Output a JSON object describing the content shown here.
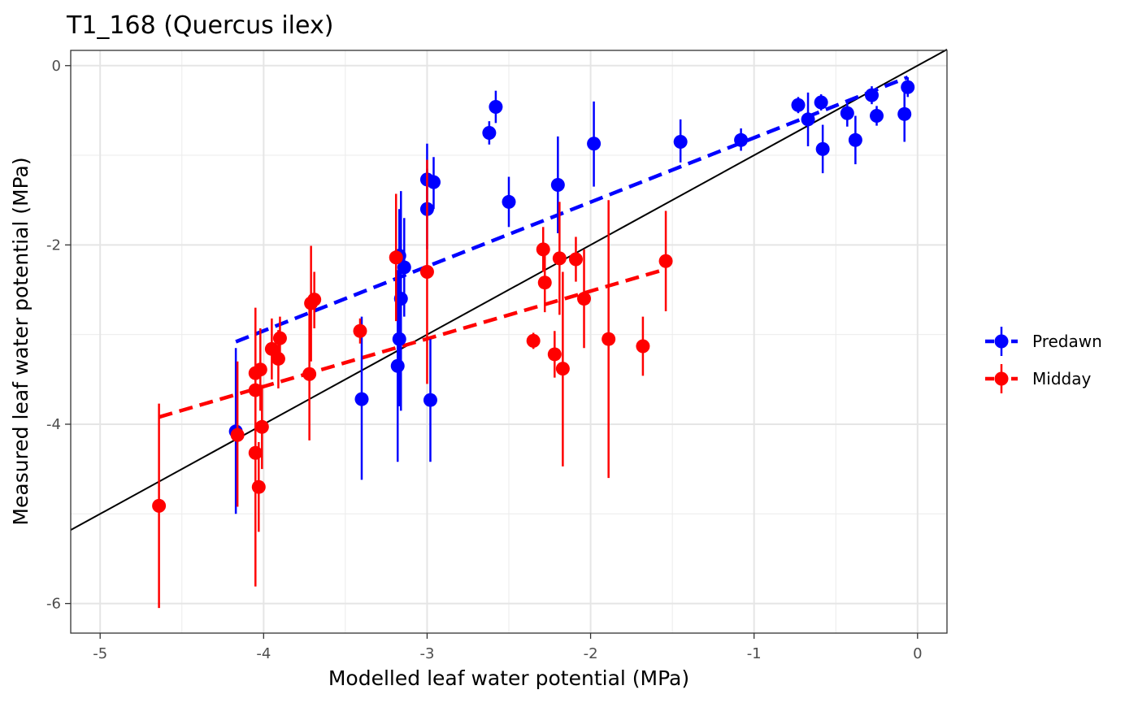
{
  "chart_data": {
    "type": "scatter",
    "title": "T1_168 (Quercus ilex)",
    "xlabel": "Modelled leaf water potential (MPa)",
    "ylabel": "Measured leaf water potential (MPa)",
    "xlim": [
      -5.18,
      0.18
    ],
    "ylim": [
      -6.33,
      0.17
    ],
    "x_ticks": [
      -5,
      -4,
      -3,
      -2,
      -1,
      0
    ],
    "y_ticks": [
      -6,
      -4,
      -2,
      0
    ],
    "grid": true,
    "legend_position": "right",
    "identity_line": {
      "from": [
        -5.18,
        -5.18
      ],
      "to": [
        0.18,
        0.18
      ],
      "color": "#000000"
    },
    "series": [
      {
        "name": "Predawn",
        "color": "#0000ff",
        "points": [
          {
            "x": -4.17,
            "y": -4.08,
            "lo": -5.0,
            "hi": -3.15
          },
          {
            "x": -3.4,
            "y": -3.72,
            "lo": -4.62,
            "hi": -2.8
          },
          {
            "x": -3.18,
            "y": -3.35,
            "lo": -4.42,
            "hi": -2.28
          },
          {
            "x": -3.17,
            "y": -3.05,
            "lo": -3.8,
            "hi": -2.3
          },
          {
            "x": -3.16,
            "y": -2.6,
            "lo": -3.85,
            "hi": -1.4
          },
          {
            "x": -3.14,
            "y": -2.25,
            "lo": -2.8,
            "hi": -1.7
          },
          {
            "x": -3.17,
            "y": -2.12,
            "lo": -2.65,
            "hi": -1.6
          },
          {
            "x": -3.0,
            "y": -1.6,
            "lo": -2.05,
            "hi": -1.15
          },
          {
            "x": -3.0,
            "y": -1.27,
            "lo": -1.65,
            "hi": -0.87
          },
          {
            "x": -2.96,
            "y": -1.3,
            "lo": -1.6,
            "hi": -1.02
          },
          {
            "x": -2.98,
            "y": -3.73,
            "lo": -4.42,
            "hi": -3.05
          },
          {
            "x": -2.62,
            "y": -0.75,
            "lo": -0.88,
            "hi": -0.62
          },
          {
            "x": -2.58,
            "y": -0.46,
            "lo": -0.64,
            "hi": -0.28
          },
          {
            "x": -2.5,
            "y": -1.52,
            "lo": -1.8,
            "hi": -1.24
          },
          {
            "x": -2.2,
            "y": -1.33,
            "lo": -1.87,
            "hi": -0.79
          },
          {
            "x": -1.98,
            "y": -0.87,
            "lo": -1.35,
            "hi": -0.4
          },
          {
            "x": -1.45,
            "y": -0.85,
            "lo": -1.08,
            "hi": -0.6
          },
          {
            "x": -1.08,
            "y": -0.83,
            "lo": -0.95,
            "hi": -0.7
          },
          {
            "x": -0.73,
            "y": -0.44,
            "lo": -0.53,
            "hi": -0.35
          },
          {
            "x": -0.67,
            "y": -0.6,
            "lo": -0.9,
            "hi": -0.3
          },
          {
            "x": -0.59,
            "y": -0.41,
            "lo": -0.5,
            "hi": -0.32
          },
          {
            "x": -0.58,
            "y": -0.93,
            "lo": -1.2,
            "hi": -0.66
          },
          {
            "x": -0.43,
            "y": -0.53,
            "lo": -0.68,
            "hi": -0.38
          },
          {
            "x": -0.38,
            "y": -0.83,
            "lo": -1.1,
            "hi": -0.56
          },
          {
            "x": -0.28,
            "y": -0.33,
            "lo": -0.43,
            "hi": -0.23
          },
          {
            "x": -0.25,
            "y": -0.56,
            "lo": -0.67,
            "hi": -0.45
          },
          {
            "x": -0.08,
            "y": -0.54,
            "lo": -0.85,
            "hi": -0.23
          },
          {
            "x": -0.06,
            "y": -0.24,
            "lo": -0.35,
            "hi": -0.13
          }
        ],
        "fit": {
          "x0": -4.17,
          "y0": -3.08,
          "x1": -0.06,
          "y1": -0.13
        }
      },
      {
        "name": "Midday",
        "color": "#ff0000",
        "points": [
          {
            "x": -4.64,
            "y": -4.91,
            "lo": -6.05,
            "hi": -3.77
          },
          {
            "x": -4.16,
            "y": -4.12,
            "lo": -4.92,
            "hi": -3.3
          },
          {
            "x": -4.05,
            "y": -4.32,
            "lo": -5.81,
            "hi": -2.7
          },
          {
            "x": -4.03,
            "y": -4.7,
            "lo": -5.2,
            "hi": -4.2
          },
          {
            "x": -4.01,
            "y": -4.03,
            "lo": -4.5,
            "hi": -3.56
          },
          {
            "x": -4.05,
            "y": -3.62,
            "lo": -4.1,
            "hi": -3.15
          },
          {
            "x": -4.05,
            "y": -3.43,
            "lo": -3.9,
            "hi": -2.95
          },
          {
            "x": -4.02,
            "y": -3.39,
            "lo": -3.85,
            "hi": -2.93
          },
          {
            "x": -3.95,
            "y": -3.16,
            "lo": -3.5,
            "hi": -2.82
          },
          {
            "x": -3.91,
            "y": -3.27,
            "lo": -3.6,
            "hi": -2.95
          },
          {
            "x": -3.9,
            "y": -3.04,
            "lo": -3.3,
            "hi": -2.8
          },
          {
            "x": -3.72,
            "y": -3.44,
            "lo": -4.18,
            "hi": -2.7
          },
          {
            "x": -3.71,
            "y": -2.65,
            "lo": -3.3,
            "hi": -2.01
          },
          {
            "x": -3.69,
            "y": -2.61,
            "lo": -2.93,
            "hi": -2.3
          },
          {
            "x": -3.41,
            "y": -2.96,
            "lo": -3.1,
            "hi": -2.82
          },
          {
            "x": -3.19,
            "y": -2.14,
            "lo": -2.85,
            "hi": -1.43
          },
          {
            "x": -3.0,
            "y": -2.3,
            "lo": -3.55,
            "hi": -1.05
          },
          {
            "x": -2.35,
            "y": -3.07,
            "lo": -3.16,
            "hi": -2.98
          },
          {
            "x": -2.29,
            "y": -2.05,
            "lo": -2.3,
            "hi": -1.8
          },
          {
            "x": -2.28,
            "y": -2.42,
            "lo": -2.75,
            "hi": -2.08
          },
          {
            "x": -2.22,
            "y": -3.22,
            "lo": -3.48,
            "hi": -2.96
          },
          {
            "x": -2.19,
            "y": -2.15,
            "lo": -2.78,
            "hi": -1.52
          },
          {
            "x": -2.17,
            "y": -3.38,
            "lo": -4.47,
            "hi": -2.3
          },
          {
            "x": -2.09,
            "y": -2.16,
            "lo": -2.41,
            "hi": -1.91
          },
          {
            "x": -2.04,
            "y": -2.6,
            "lo": -3.15,
            "hi": -2.05
          },
          {
            "x": -1.89,
            "y": -3.05,
            "lo": -4.6,
            "hi": -1.5
          },
          {
            "x": -1.68,
            "y": -3.13,
            "lo": -3.46,
            "hi": -2.8
          },
          {
            "x": -1.54,
            "y": -2.18,
            "lo": -2.74,
            "hi": -1.62
          }
        ],
        "fit": {
          "x0": -4.64,
          "y0": -3.92,
          "x1": -1.54,
          "y1": -2.27
        }
      }
    ]
  }
}
